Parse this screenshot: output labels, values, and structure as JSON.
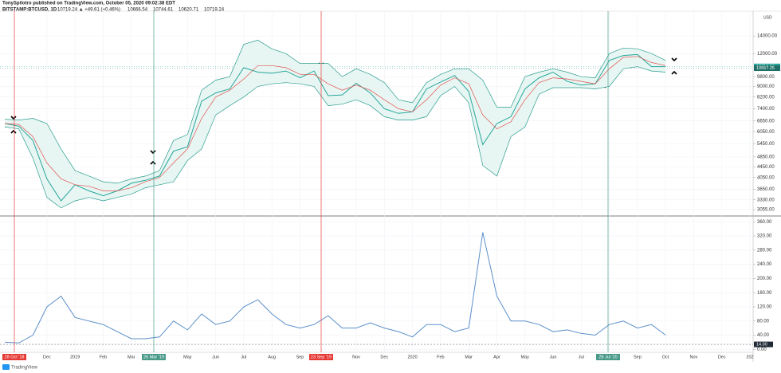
{
  "header": {
    "author_line": "TonySpilotro published on TradingView.com, October 05, 2020 09:02:38 EDT",
    "symbol": "BITSTAMP:BTCUSD, 1D",
    "quote": "10719.24 ▲ +49.61 (+0.46%)",
    "ohlc": [
      "10666.54",
      "10744.61",
      "10620.71",
      "10719.24"
    ]
  },
  "chart_data": [
    {
      "type": "line",
      "log_scale": true,
      "unit_label": "USD",
      "grid": true,
      "band_fill_color": "#e8f6f3",
      "categories": [
        null,
        null,
        null,
        "Dec",
        null,
        "2019",
        null,
        "Feb",
        null,
        "Mar",
        null,
        null,
        null,
        "May",
        null,
        "Jun",
        null,
        "Jul",
        null,
        "Aug",
        null,
        "Sep",
        null,
        null,
        null,
        "Nov",
        null,
        "Dec",
        null,
        "2020",
        null,
        "Feb",
        null,
        "Mar",
        null,
        "Apr",
        null,
        "May",
        null,
        "Jun",
        null,
        "Jul",
        null,
        "Aug",
        null,
        "Sep",
        null,
        "Oct",
        null,
        "Nov",
        null,
        "Dec",
        null,
        "202"
      ],
      "series": [
        {
          "color": "#26a69a",
          "values": [
            6500,
            6350,
            5600,
            4000,
            3300,
            3800,
            3600,
            3450,
            3600,
            3850,
            3950,
            4100,
            5100,
            5300,
            7900,
            8500,
            8800,
            10600,
            10200,
            10100,
            10300,
            9700,
            10300,
            8300,
            8350,
            9250,
            8500,
            7400,
            7100,
            7200,
            8800,
            9350,
            9900,
            8600,
            5400,
            6500,
            6900,
            8800,
            9700,
            10200,
            9400,
            9100,
            9200,
            11300,
            11800,
            11900,
            10700,
            10700,
            null,
            null,
            null,
            null,
            null,
            null
          ]
        },
        {
          "color": "#e0524f",
          "values": [
            6500,
            6450,
            5800,
            4600,
            4000,
            3800,
            3750,
            3600,
            3600,
            3700,
            3900,
            4050,
            4600,
            5200,
            6800,
            8200,
            8700,
            9600,
            10800,
            10800,
            10600,
            10000,
            10000,
            9200,
            8700,
            9100,
            8700,
            8000,
            7400,
            7200,
            8000,
            9100,
            9700,
            9200,
            7000,
            6200,
            6600,
            8000,
            9300,
            9700,
            9600,
            9400,
            9200,
            10500,
            11600,
            11700,
            11100,
            10800,
            null,
            null,
            null,
            null,
            null,
            null
          ]
        },
        {
          "color": "#2a9d8f",
          "values": [
            6750,
            6700,
            6800,
            6500,
            5200,
            4300,
            4100,
            3900,
            3850,
            4000,
            4100,
            4300,
            5600,
            5900,
            8700,
            9500,
            9800,
            13000,
            13500,
            12500,
            12000,
            11000,
            11000,
            11000,
            9800,
            10500,
            10000,
            9300,
            8000,
            7800,
            9300,
            10000,
            10500,
            10500,
            9500,
            7500,
            7500,
            9800,
            10200,
            10500,
            10200,
            9800,
            9700,
            12000,
            12600,
            12500,
            12000,
            11300,
            null,
            null,
            null,
            null,
            null,
            null
          ]
        },
        {
          "color": "#2a9d8f",
          "values": [
            6300,
            6200,
            4800,
            3400,
            3100,
            3300,
            3400,
            3300,
            3400,
            3500,
            3700,
            3800,
            3900,
            4700,
            5200,
            7000,
            7600,
            8200,
            9000,
            9200,
            9300,
            9200,
            9000,
            7600,
            7700,
            8000,
            7600,
            6900,
            6700,
            6700,
            6900,
            8300,
            9000,
            7800,
            4500,
            4100,
            5800,
            6300,
            8400,
            8900,
            8900,
            8900,
            8800,
            9000,
            10500,
            10700,
            10300,
            10200,
            null,
            null,
            null,
            null,
            null,
            null
          ]
        }
      ],
      "ylim": [
        2910,
        17400
      ],
      "yticks": [
        {
          "value": 3055,
          "label": "3055.00"
        },
        {
          "value": 3330,
          "label": "3330.00"
        },
        {
          "value": 3650,
          "label": "3650.00"
        },
        {
          "value": 4050,
          "label": "4050.00"
        },
        {
          "value": 4450,
          "label": "4450.00"
        },
        {
          "value": 4850,
          "label": "4850.00"
        },
        {
          "value": 5450,
          "label": "5450.00"
        },
        {
          "value": 6050,
          "label": "6050.00"
        },
        {
          "value": 6650,
          "label": "6650.00"
        },
        {
          "value": 7400,
          "label": "7400.00"
        },
        {
          "value": 8200,
          "label": "8200.00"
        },
        {
          "value": 9000,
          "label": "9000.00"
        },
        {
          "value": 9800,
          "label": "9800.00"
        },
        {
          "value": 12000,
          "label": "12000.00"
        },
        {
          "value": 14000,
          "label": "14000.00"
        }
      ],
      "last_tags": [
        {
          "value": 10719.24,
          "color": "#26a69a"
        },
        {
          "value": 10557.25,
          "color": "#1e6e66"
        }
      ]
    },
    {
      "type": "line",
      "grid": true,
      "series": [
        {
          "color": "#5b8fc9",
          "values": [
            20,
            18,
            40,
            120,
            150,
            90,
            80,
            70,
            50,
            30,
            30,
            35,
            80,
            55,
            100,
            70,
            80,
            120,
            140,
            100,
            70,
            60,
            70,
            95,
            60,
            60,
            75,
            60,
            50,
            35,
            70,
            70,
            50,
            60,
            330,
            150,
            80,
            80,
            70,
            50,
            55,
            45,
            40,
            70,
            80,
            60,
            70,
            40,
            null,
            null,
            null,
            null,
            null,
            null
          ]
        }
      ],
      "ylim": [
        -6,
        374
      ],
      "yticks": [
        {
          "value": 0,
          "label": "0.00"
        },
        {
          "value": 40,
          "label": "40.00"
        },
        {
          "value": 80,
          "label": "80.00"
        },
        {
          "value": 120,
          "label": "120.00"
        },
        {
          "value": 160,
          "label": "160.00"
        },
        {
          "value": 200,
          "label": "200.00"
        },
        {
          "value": 240,
          "label": "240.00"
        },
        {
          "value": 280,
          "label": "280.00"
        },
        {
          "value": 320,
          "label": "320.00"
        },
        {
          "value": 360,
          "label": "360.00"
        }
      ],
      "last_tag": {
        "value": 14,
        "label": "14.00"
      }
    }
  ],
  "markers": [
    {
      "label": "28 Oct '18",
      "color": "#e53935"
    },
    {
      "label": "26 Mar '19",
      "color": "#4a9a8a"
    },
    {
      "label": "23 Sep '19",
      "color": "#e53935"
    },
    {
      "label": "28 Jul '20",
      "color": "#4a9a8a"
    }
  ],
  "footer": "TradingView"
}
